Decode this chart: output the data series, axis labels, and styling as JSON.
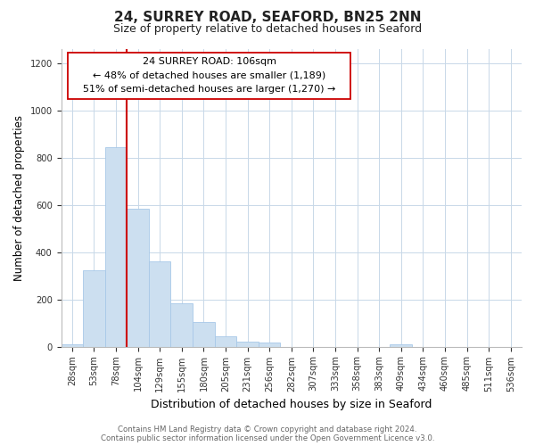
{
  "title": "24, SURREY ROAD, SEAFORD, BN25 2NN",
  "subtitle": "Size of property relative to detached houses in Seaford",
  "xlabel": "Distribution of detached houses by size in Seaford",
  "ylabel": "Number of detached properties",
  "bar_labels": [
    "28sqm",
    "53sqm",
    "78sqm",
    "104sqm",
    "129sqm",
    "155sqm",
    "180sqm",
    "205sqm",
    "231sqm",
    "256sqm",
    "282sqm",
    "307sqm",
    "333sqm",
    "358sqm",
    "383sqm",
    "409sqm",
    "434sqm",
    "460sqm",
    "485sqm",
    "511sqm",
    "536sqm"
  ],
  "bar_heights": [
    10,
    325,
    845,
    585,
    360,
    185,
    105,
    45,
    20,
    18,
    0,
    0,
    0,
    0,
    0,
    10,
    0,
    0,
    0,
    0,
    0
  ],
  "bar_color": "#ccdff0",
  "bar_edge_color": "#a8c8e8",
  "vline_x": 3,
  "vline_color": "#cc0000",
  "annotation_line1": "24 SURREY ROAD: 106sqm",
  "annotation_line2": "← 48% of detached houses are smaller (1,189)",
  "annotation_line3": "51% of semi-detached houses are larger (1,270) →",
  "ylim": [
    0,
    1260
  ],
  "yticks": [
    0,
    200,
    400,
    600,
    800,
    1000,
    1200
  ],
  "footer_text": "Contains HM Land Registry data © Crown copyright and database right 2024.\nContains public sector information licensed under the Open Government Licence v3.0.",
  "background_color": "#ffffff",
  "grid_color": "#c8d8e8"
}
